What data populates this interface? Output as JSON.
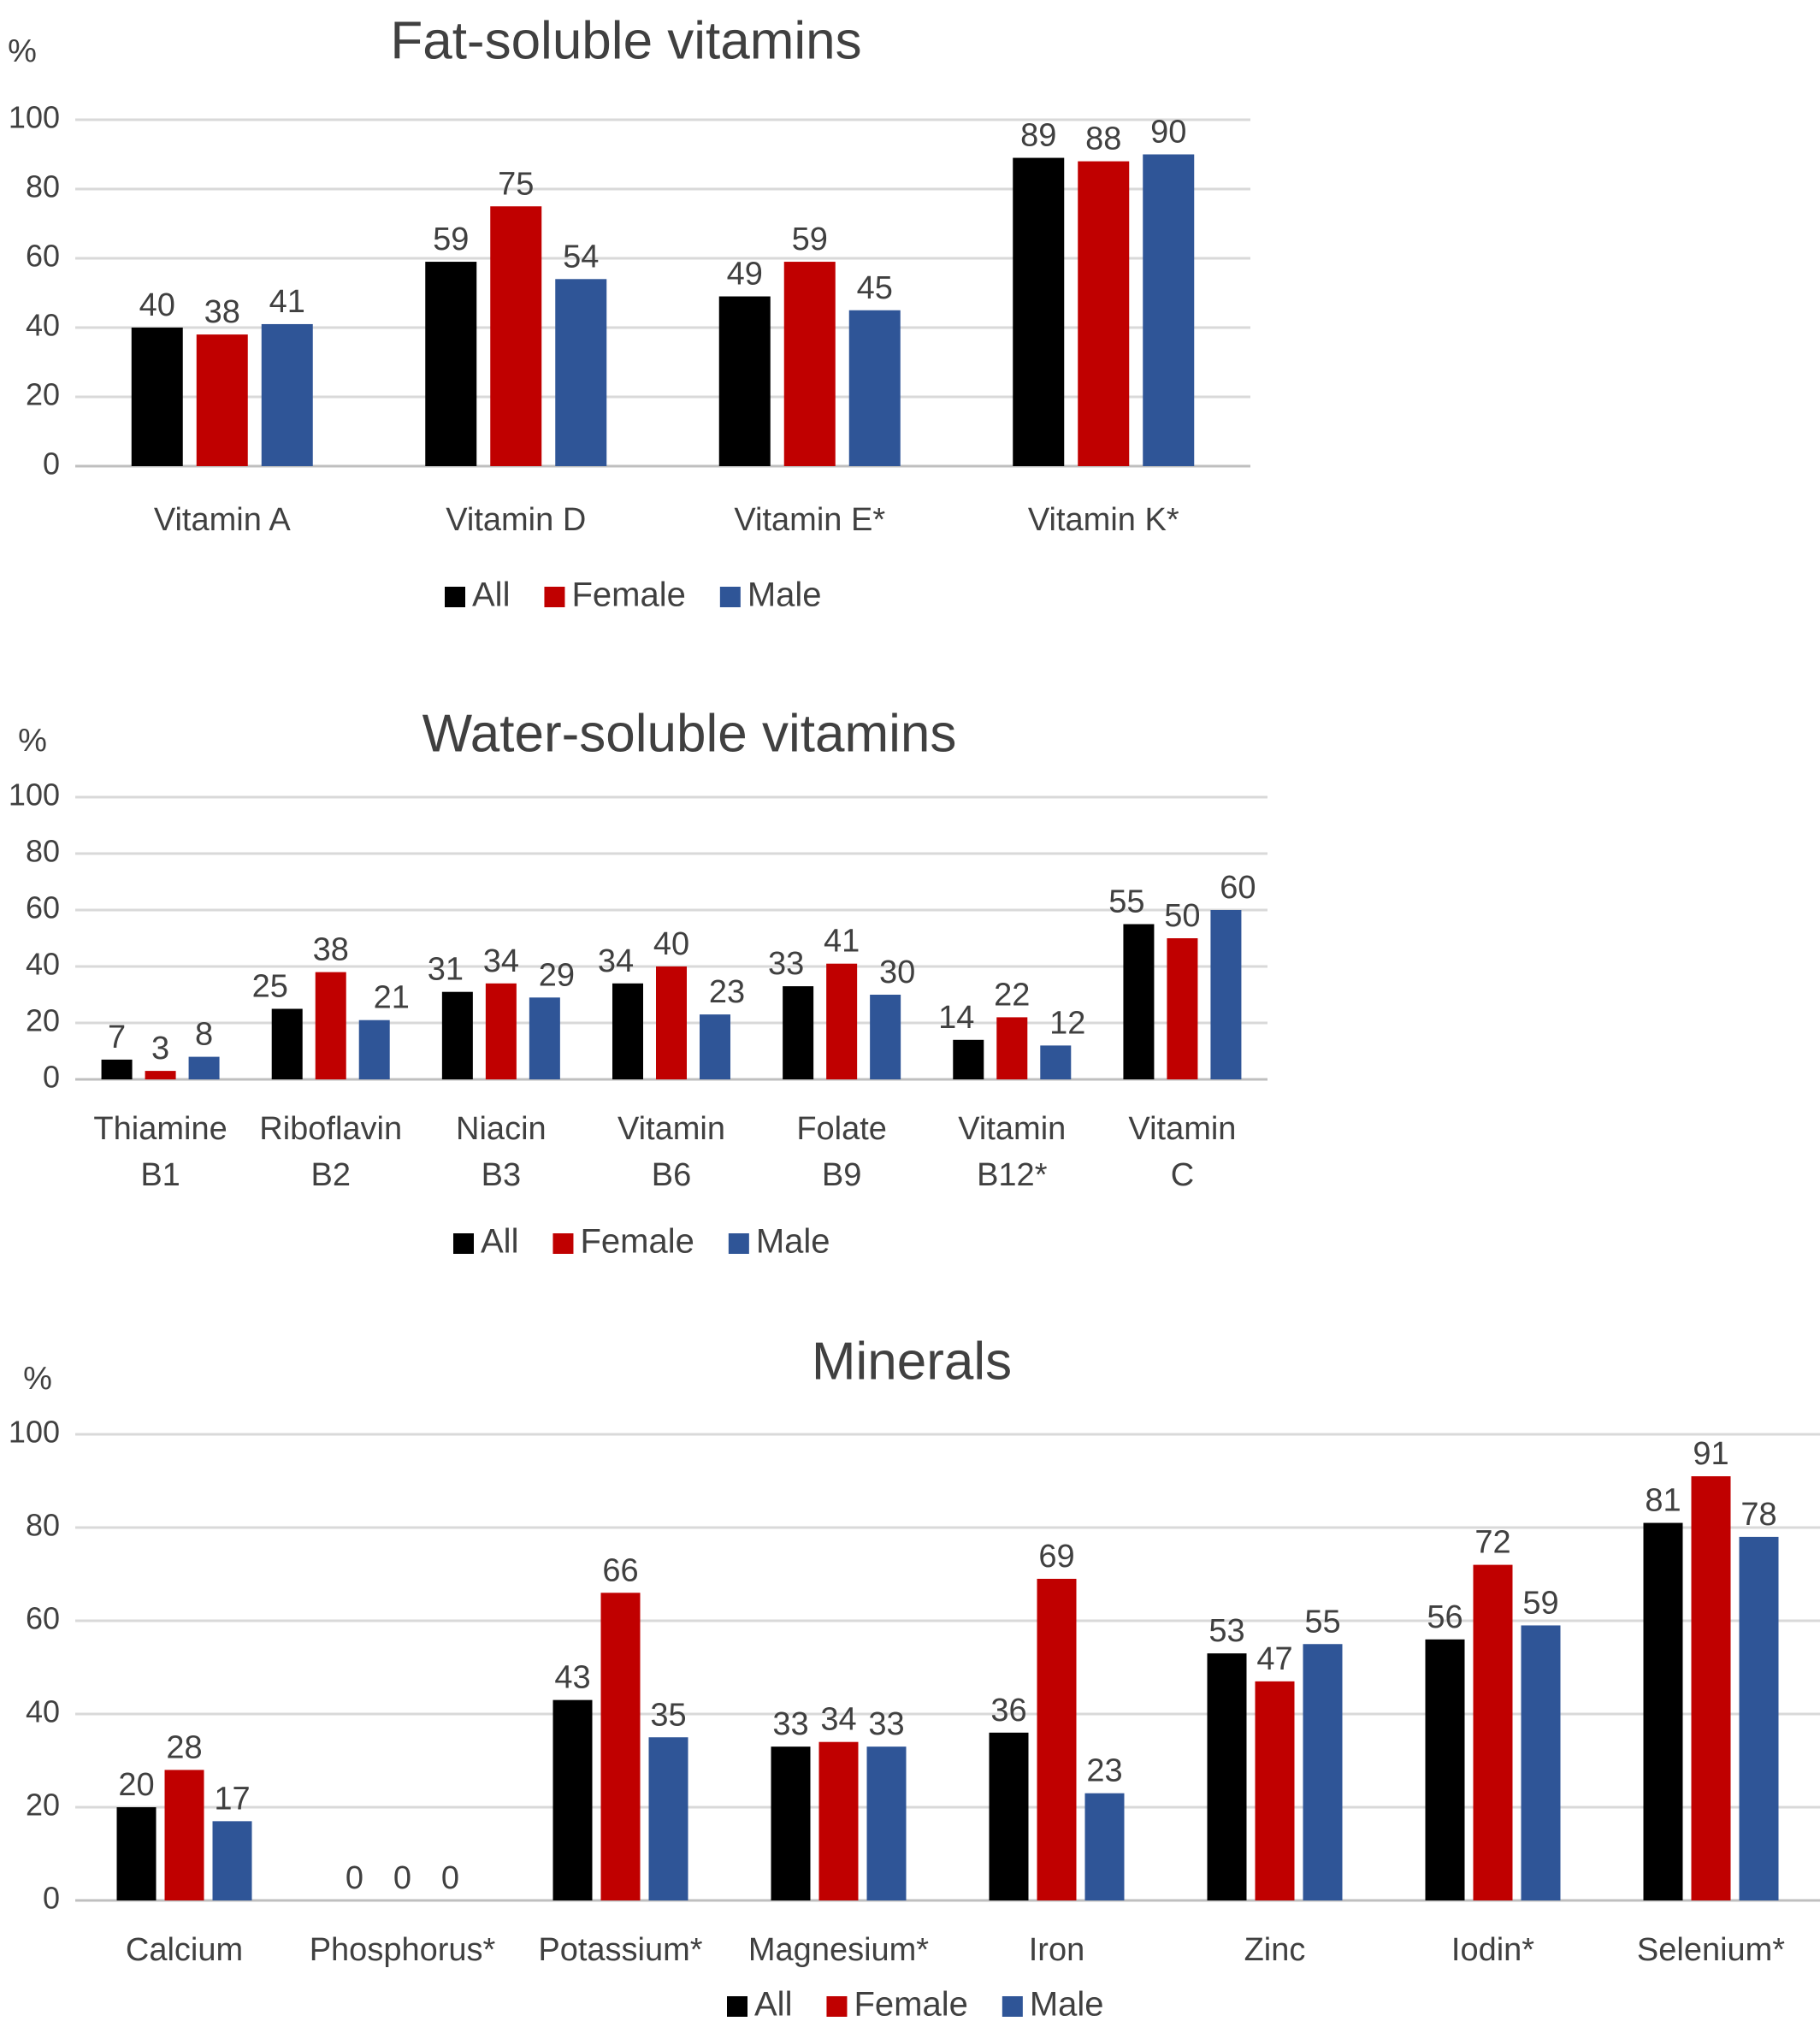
{
  "colors": {
    "All": "#000000",
    "Female": "#c00000",
    "Male": "#2f5597"
  },
  "chart_data": [
    {
      "type": "bar",
      "title": "Fat-soluble vitamins",
      "ylabel": "%",
      "ylim": [
        0,
        100
      ],
      "yticks": [
        0,
        20,
        40,
        60,
        80,
        100
      ],
      "grid": true,
      "legend": "bottom",
      "categories": [
        "Vitamin A",
        "Vitamin D",
        "Vitamin E*",
        "Vitamin K*"
      ],
      "series": [
        {
          "name": "All",
          "values": [
            40,
            59,
            49,
            89
          ]
        },
        {
          "name": "Female",
          "values": [
            38,
            75,
            59,
            88
          ]
        },
        {
          "name": "Male",
          "values": [
            41,
            54,
            45,
            90
          ]
        }
      ]
    },
    {
      "type": "bar",
      "title": "Water-soluble vitamins",
      "ylabel": "%",
      "ylim": [
        0,
        100
      ],
      "yticks": [
        0,
        20,
        40,
        60,
        80,
        100
      ],
      "grid": true,
      "legend": "bottom",
      "categories": [
        "Thiamine B1",
        "Riboflavin B2",
        "Niacin B3",
        "Vitamin B6",
        "Folate B9",
        "Vitamin B12*",
        "Vitamin C"
      ],
      "series": [
        {
          "name": "All",
          "values": [
            7,
            25,
            31,
            34,
            33,
            14,
            55
          ]
        },
        {
          "name": "Female",
          "values": [
            3,
            38,
            34,
            40,
            41,
            22,
            50
          ]
        },
        {
          "name": "Male",
          "values": [
            8,
            21,
            29,
            23,
            30,
            12,
            60
          ]
        }
      ]
    },
    {
      "type": "bar",
      "title": "Minerals",
      "ylabel": "%",
      "ylim": [
        0,
        100
      ],
      "yticks": [
        0,
        20,
        40,
        60,
        80,
        100
      ],
      "grid": true,
      "legend": "bottom",
      "categories": [
        "Calcium",
        "Phosphorus*",
        "Potassium*",
        "Magnesium*",
        "Iron",
        "Zinc",
        "Iodin*",
        "Selenium*"
      ],
      "series": [
        {
          "name": "All",
          "values": [
            20,
            0,
            43,
            33,
            36,
            53,
            56,
            81
          ]
        },
        {
          "name": "Female",
          "values": [
            28,
            0,
            66,
            34,
            69,
            47,
            72,
            91
          ]
        },
        {
          "name": "Male",
          "values": [
            17,
            0,
            35,
            33,
            23,
            55,
            59,
            78
          ]
        }
      ]
    }
  ]
}
